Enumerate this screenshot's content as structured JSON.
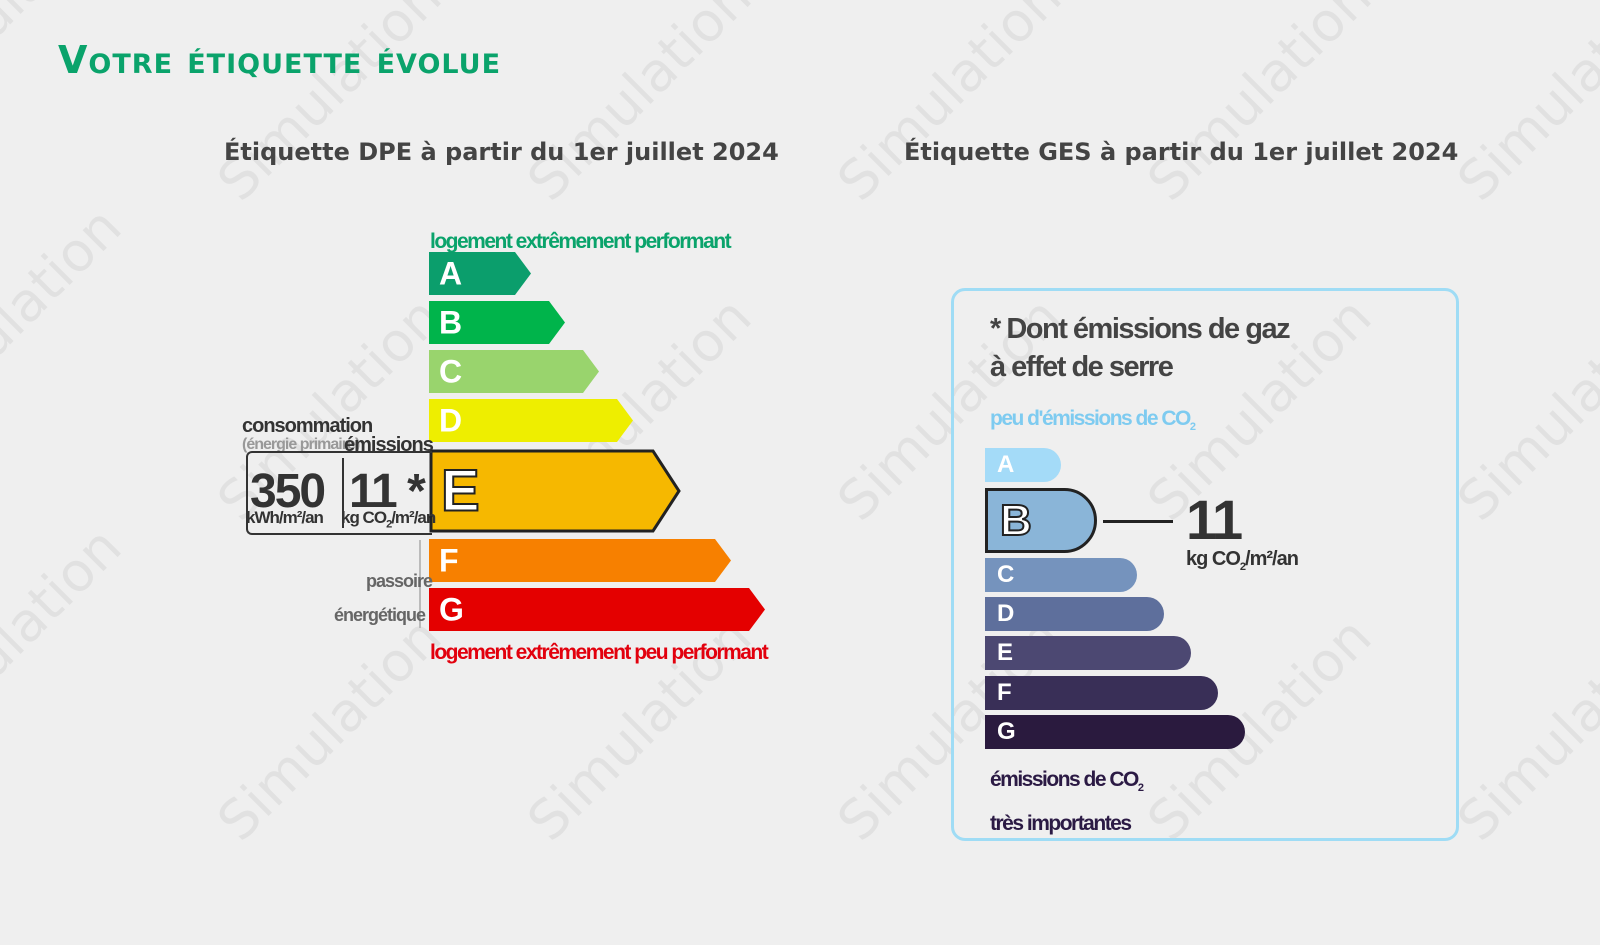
{
  "watermark": "Simulation",
  "title": "Votre étiquette évolue",
  "dpe": {
    "subtitle": "Étiquette DPE à partir du 1er juillet 2024",
    "top_caption": "logement extrêmement performant",
    "bottom_caption": "logement extrêmement peu performant",
    "classes": [
      {
        "letter": "A",
        "color": "#0b9e6c"
      },
      {
        "letter": "B",
        "color": "#00b44b"
      },
      {
        "letter": "C",
        "color": "#99d46d"
      },
      {
        "letter": "D",
        "color": "#eeee00"
      },
      {
        "letter": "E",
        "color": "#f6b800"
      },
      {
        "letter": "F",
        "color": "#f78000"
      },
      {
        "letter": "G",
        "color": "#e40000"
      }
    ],
    "current_class": "E",
    "consumption_label": "consommation",
    "consumption_sub": "(énergie primaire)",
    "emissions_label": "émissions",
    "consumption_value": "350",
    "emissions_value": "11 *",
    "consumption_unit": "kWh/m²/an",
    "emissions_unit_prefix": "kg CO",
    "emissions_unit_suffix": "/m²/an",
    "passoire_line1": "passoire",
    "passoire_line2": "énergétique"
  },
  "ges": {
    "subtitle": "Étiquette GES à partir du 1er juillet 2024",
    "heading_line1": "* Dont émissions de gaz",
    "heading_line2": "à effet de serre",
    "top_caption": "peu d'émissions de CO",
    "bottom_caption_line1": "émissions de CO",
    "bottom_caption_line2": "très importantes",
    "classes": [
      {
        "letter": "A",
        "color": "#a4dbf8"
      },
      {
        "letter": "B",
        "color": "#8ab5d8"
      },
      {
        "letter": "C",
        "color": "#7593bd"
      },
      {
        "letter": "D",
        "color": "#5e6f9c"
      },
      {
        "letter": "E",
        "color": "#4c4872"
      },
      {
        "letter": "F",
        "color": "#392f57"
      },
      {
        "letter": "G",
        "color": "#2a1a3e"
      }
    ],
    "current_class": "B",
    "value": "11",
    "unit_prefix": "kg CO",
    "unit_suffix": "/m²/an",
    "subscript": "2"
  }
}
